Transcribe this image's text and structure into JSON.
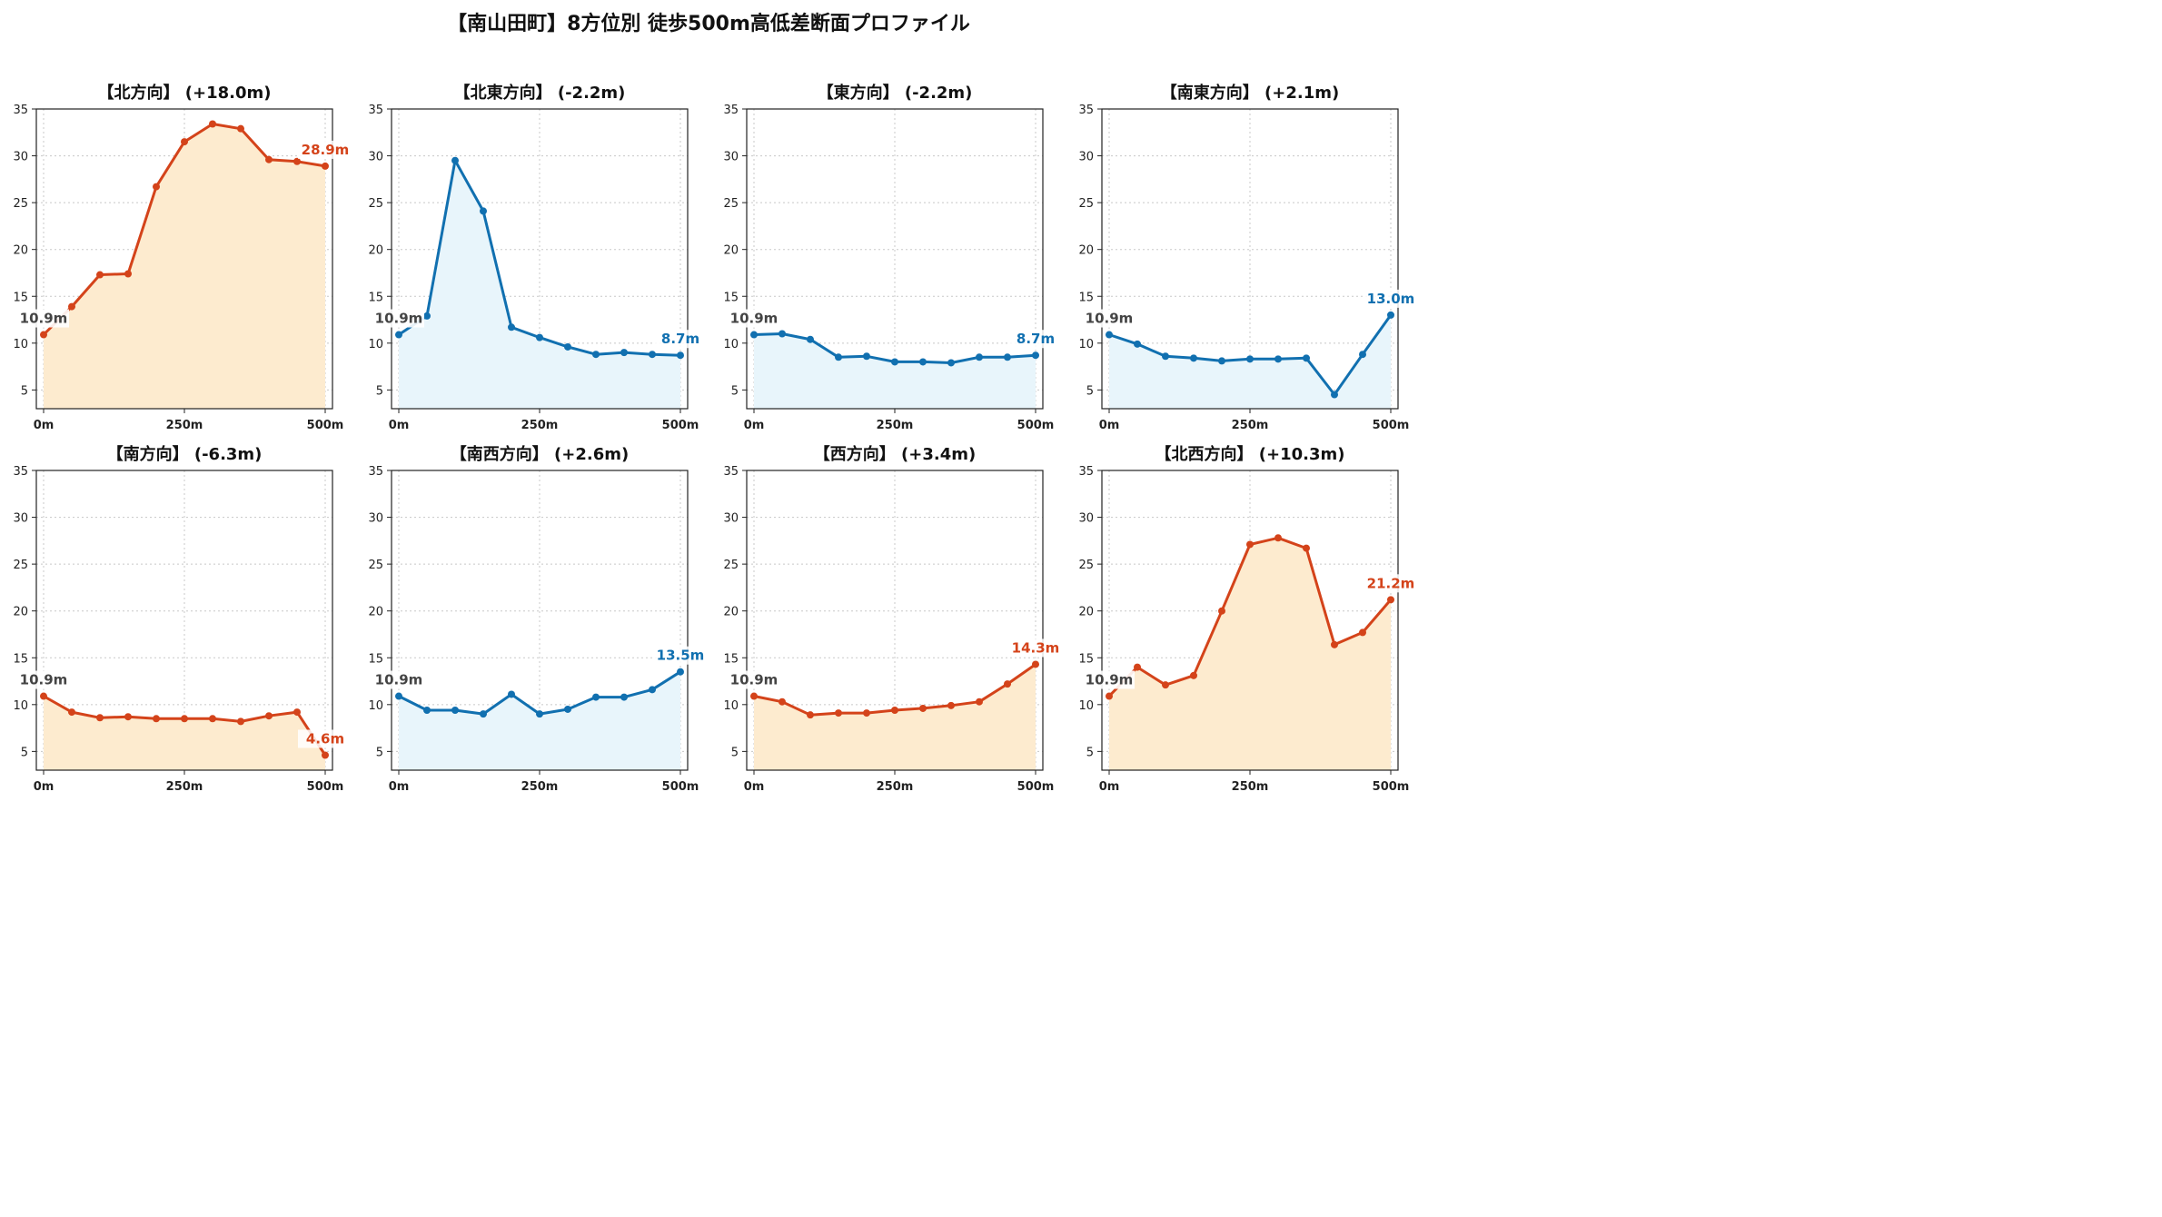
{
  "title": "【南山田町】8方位別 徒歩500m高低差断面プロファイル",
  "colors": {
    "up": "#d4431a",
    "up_fill": "#fdebcf",
    "down": "#1170b0",
    "down_fill": "#e8f5fb",
    "start_label": "#444444"
  },
  "chart_data": [
    {
      "type": "area",
      "title": "【北方向】 (+18.0m)",
      "trend": "up",
      "x": [
        0,
        50,
        100,
        150,
        200,
        250,
        300,
        350,
        400,
        450,
        500
      ],
      "values": [
        10.9,
        13.9,
        17.3,
        17.4,
        26.7,
        31.5,
        33.4,
        32.9,
        29.6,
        29.4,
        28.9
      ],
      "start_label": "10.9m",
      "end_label": "28.9m",
      "xlim": [
        0,
        500
      ],
      "ylim": [
        3,
        35
      ],
      "xticks": [
        "0m",
        "250m",
        "500m"
      ],
      "yticks": [
        "5",
        "10",
        "15",
        "20",
        "25",
        "30",
        "35"
      ],
      "grid": true
    },
    {
      "type": "area",
      "title": "【北東方向】 (-2.2m)",
      "trend": "down",
      "x": [
        0,
        50,
        100,
        150,
        200,
        250,
        300,
        350,
        400,
        450,
        500
      ],
      "values": [
        10.9,
        12.9,
        29.5,
        24.1,
        11.7,
        10.6,
        9.6,
        8.8,
        9.0,
        8.8,
        8.7
      ],
      "start_label": "10.9m",
      "end_label": "8.7m",
      "xlim": [
        0,
        500
      ],
      "ylim": [
        3,
        35
      ],
      "xticks": [
        "0m",
        "250m",
        "500m"
      ],
      "yticks": [
        "5",
        "10",
        "15",
        "20",
        "25",
        "30",
        "35"
      ],
      "grid": true
    },
    {
      "type": "area",
      "title": "【東方向】 (-2.2m)",
      "trend": "down",
      "x": [
        0,
        50,
        100,
        150,
        200,
        250,
        300,
        350,
        400,
        450,
        500
      ],
      "values": [
        10.9,
        11.0,
        10.4,
        8.5,
        8.6,
        8.0,
        8.0,
        7.9,
        8.5,
        8.5,
        8.7
      ],
      "start_label": "10.9m",
      "end_label": "8.7m",
      "xlim": [
        0,
        500
      ],
      "ylim": [
        3,
        35
      ],
      "xticks": [
        "0m",
        "250m",
        "500m"
      ],
      "yticks": [
        "5",
        "10",
        "15",
        "20",
        "25",
        "30",
        "35"
      ],
      "grid": true
    },
    {
      "type": "area",
      "title": "【南東方向】 (+2.1m)",
      "trend": "down",
      "x": [
        0,
        50,
        100,
        150,
        200,
        250,
        300,
        350,
        400,
        450,
        500
      ],
      "values": [
        10.9,
        9.9,
        8.6,
        8.4,
        8.1,
        8.3,
        8.3,
        8.4,
        4.5,
        8.8,
        13.0
      ],
      "start_label": "10.9m",
      "end_label": "13.0m",
      "xlim": [
        0,
        500
      ],
      "ylim": [
        3,
        35
      ],
      "xticks": [
        "0m",
        "250m",
        "500m"
      ],
      "yticks": [
        "5",
        "10",
        "15",
        "20",
        "25",
        "30",
        "35"
      ],
      "grid": true
    },
    {
      "type": "area",
      "title": "【南方向】 (-6.3m)",
      "trend": "up",
      "x": [
        0,
        50,
        100,
        150,
        200,
        250,
        300,
        350,
        400,
        450,
        500
      ],
      "values": [
        10.9,
        9.2,
        8.6,
        8.7,
        8.5,
        8.5,
        8.5,
        8.2,
        8.8,
        9.2,
        4.6
      ],
      "start_label": "10.9m",
      "end_label": "4.6m",
      "xlim": [
        0,
        500
      ],
      "ylim": [
        3,
        35
      ],
      "xticks": [
        "0m",
        "250m",
        "500m"
      ],
      "yticks": [
        "5",
        "10",
        "15",
        "20",
        "25",
        "30",
        "35"
      ],
      "grid": true
    },
    {
      "type": "area",
      "title": "【南西方向】 (+2.6m)",
      "trend": "down",
      "x": [
        0,
        50,
        100,
        150,
        200,
        250,
        300,
        350,
        400,
        450,
        500
      ],
      "values": [
        10.9,
        9.4,
        9.4,
        9.0,
        11.1,
        9.0,
        9.5,
        10.8,
        10.8,
        11.6,
        13.5
      ],
      "start_label": "10.9m",
      "end_label": "13.5m",
      "xlim": [
        0,
        500
      ],
      "ylim": [
        3,
        35
      ],
      "xticks": [
        "0m",
        "250m",
        "500m"
      ],
      "yticks": [
        "5",
        "10",
        "15",
        "20",
        "25",
        "30",
        "35"
      ],
      "grid": true
    },
    {
      "type": "area",
      "title": "【西方向】 (+3.4m)",
      "trend": "up",
      "x": [
        0,
        50,
        100,
        150,
        200,
        250,
        300,
        350,
        400,
        450,
        500
      ],
      "values": [
        10.9,
        10.3,
        8.9,
        9.1,
        9.1,
        9.4,
        9.6,
        9.9,
        10.3,
        12.2,
        14.3
      ],
      "start_label": "10.9m",
      "end_label": "14.3m",
      "xlim": [
        0,
        500
      ],
      "ylim": [
        3,
        35
      ],
      "xticks": [
        "0m",
        "250m",
        "500m"
      ],
      "yticks": [
        "5",
        "10",
        "15",
        "20",
        "25",
        "30",
        "35"
      ],
      "grid": true
    },
    {
      "type": "area",
      "title": "【北西方向】 (+10.3m)",
      "trend": "up",
      "x": [
        0,
        50,
        100,
        150,
        200,
        250,
        300,
        350,
        400,
        450,
        500
      ],
      "values": [
        10.9,
        14.0,
        12.1,
        13.1,
        20.0,
        27.1,
        27.8,
        26.7,
        16.4,
        17.7,
        21.2
      ],
      "start_label": "10.9m",
      "end_label": "21.2m",
      "xlim": [
        0,
        500
      ],
      "ylim": [
        3,
        35
      ],
      "xticks": [
        "0m",
        "250m",
        "500m"
      ],
      "yticks": [
        "5",
        "10",
        "15",
        "20",
        "25",
        "30",
        "35"
      ],
      "grid": true
    }
  ]
}
